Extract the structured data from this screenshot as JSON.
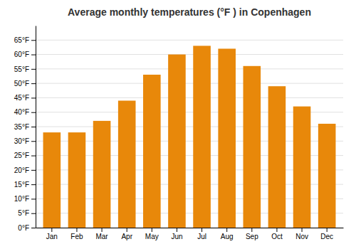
{
  "chart_data": {
    "type": "bar",
    "title": "Average monthly temperatures (°F ) in Copenhagen",
    "categories": [
      "Jan",
      "Feb",
      "Mar",
      "Apr",
      "May",
      "Jun",
      "Jul",
      "Aug",
      "Sep",
      "Oct",
      "Nov",
      "Dec"
    ],
    "values": [
      33,
      33,
      37,
      44,
      53,
      60,
      63,
      62,
      56,
      49,
      42,
      36
    ],
    "color": "#E8880A",
    "ylim": [
      0,
      70
    ],
    "yticks": [
      {
        "value": 0,
        "label": "0°F"
      },
      {
        "value": 5,
        "label": "5°F"
      },
      {
        "value": 10,
        "label": "10°F"
      },
      {
        "value": 15,
        "label": "15°F"
      },
      {
        "value": 20,
        "label": "20°F"
      },
      {
        "value": 25,
        "label": "25°F"
      },
      {
        "value": 30,
        "label": "30°F"
      },
      {
        "value": 35,
        "label": "35°F"
      },
      {
        "value": 40,
        "label": "40°F"
      },
      {
        "value": 45,
        "label": "45°F"
      },
      {
        "value": 50,
        "label": "50°F"
      },
      {
        "value": 55,
        "label": "55°F"
      },
      {
        "value": 60,
        "label": "60°F"
      },
      {
        "value": 65,
        "label": "65°F"
      }
    ],
    "grid": true
  }
}
